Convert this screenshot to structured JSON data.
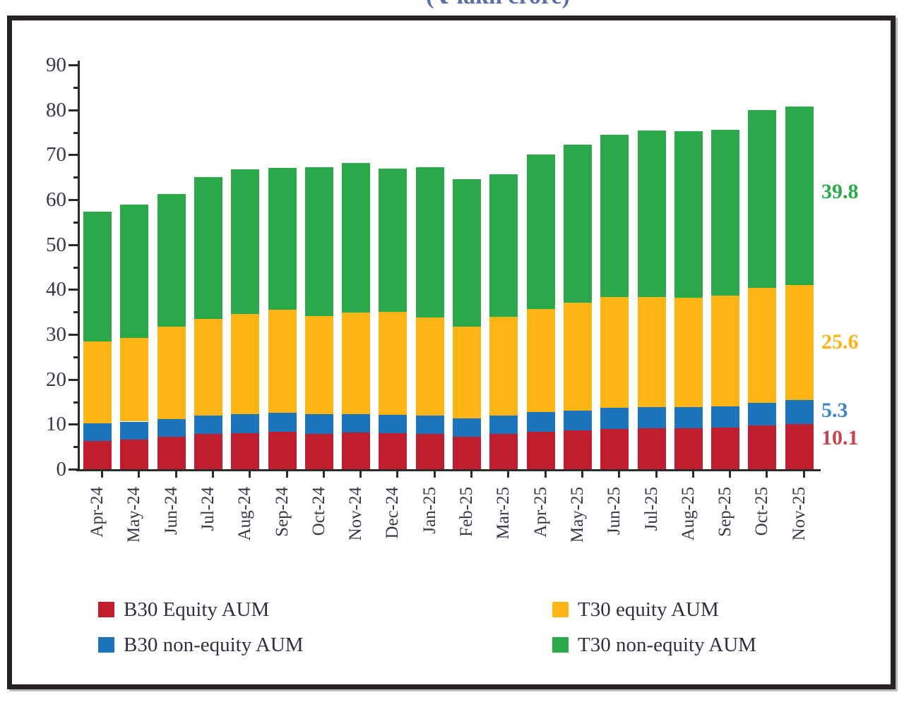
{
  "subtitle_clipped": "(₹ lakh crore)",
  "chart_data": {
    "type": "bar",
    "stacked": true,
    "title": "",
    "unit_label": "(₹ lakh crore)",
    "xlabel": "",
    "ylabel": "",
    "ylim": [
      0,
      90
    ],
    "ytick_step": 10,
    "grid": false,
    "legend_position": "bottom",
    "categories": [
      "Apr-24",
      "May-24",
      "Jun-24",
      "Jul-24",
      "Aug-24",
      "Sep-24",
      "Oct-24",
      "Nov-24",
      "Dec-24",
      "Jan-25",
      "Feb-25",
      "Mar-25",
      "Apr-25",
      "May-25",
      "Jun-25",
      "Jul-25",
      "Aug-25",
      "Sep-25",
      "Oct-25",
      "Nov-25"
    ],
    "series": [
      {
        "name": "B30 Equity AUM",
        "color": "#BE1E2D",
        "values": [
          6.3,
          6.6,
          7.2,
          7.8,
          8.0,
          8.3,
          7.9,
          8.1,
          8.0,
          7.8,
          7.2,
          7.9,
          8.3,
          8.7,
          9.0,
          9.1,
          9.1,
          9.2,
          9.7,
          10.1
        ]
      },
      {
        "name": "B30 non-equity AUM",
        "color": "#1C75BC",
        "values": [
          3.9,
          4.0,
          4.0,
          4.1,
          4.3,
          4.2,
          4.3,
          4.2,
          4.1,
          4.2,
          4.1,
          4.0,
          4.4,
          4.4,
          4.7,
          4.7,
          4.7,
          4.8,
          5.0,
          5.3
        ]
      },
      {
        "name": "T30 equity AUM",
        "color": "#FDB515",
        "values": [
          18.3,
          18.6,
          20.6,
          21.6,
          22.3,
          23.0,
          21.9,
          22.5,
          22.9,
          21.8,
          20.5,
          22.0,
          22.9,
          23.9,
          24.6,
          24.5,
          24.4,
          24.6,
          25.7,
          25.6
        ]
      },
      {
        "name": "T30 non-equity AUM",
        "color": "#2BA84A",
        "values": [
          28.8,
          29.7,
          29.4,
          31.5,
          32.1,
          31.6,
          33.2,
          33.3,
          31.9,
          33.5,
          32.7,
          31.8,
          34.4,
          35.2,
          36.1,
          37.1,
          37.0,
          37.0,
          39.5,
          39.8
        ]
      }
    ],
    "end_labels": [
      {
        "text": "39.8",
        "series": "T30 non-equity AUM",
        "color": "#2BA84A"
      },
      {
        "text": "25.6",
        "series": "T30 equity AUM",
        "color": "#FBB316"
      },
      {
        "text": "5.3",
        "series": "B30 non-equity AUM",
        "color": "#3F85C9"
      },
      {
        "text": "10.1",
        "series": "B30 Equity AUM",
        "color": "#C9424E"
      }
    ]
  },
  "legend": {
    "items": [
      {
        "label": "B30 Equity AUM",
        "color": "#BE1E2D"
      },
      {
        "label": "T30 equity AUM",
        "color": "#FDB515"
      },
      {
        "label": "B30 non-equity AUM",
        "color": "#1C75BC"
      },
      {
        "label": "T30 non-equity AUM",
        "color": "#2BA84A"
      }
    ]
  }
}
